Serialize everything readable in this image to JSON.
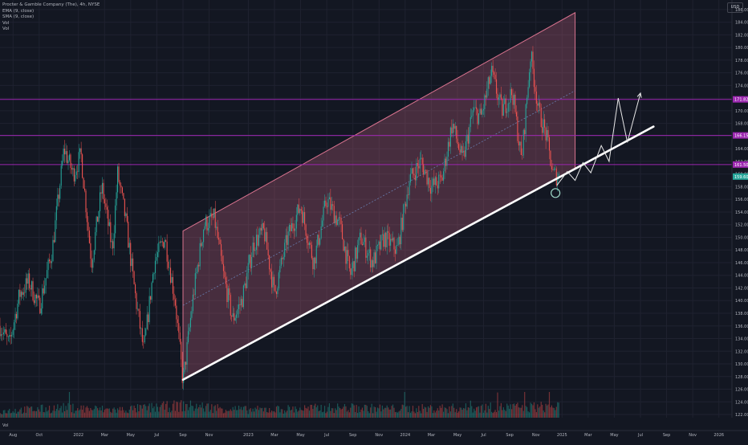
{
  "legend": {
    "symbol": "Procter & Gamble Company (The), 4h, NYSE",
    "ema": "EMA (9, close)",
    "sma": "SMA (9, close)",
    "vol1": "Vol",
    "vol2": "Vol"
  },
  "currency": "USD",
  "volume_label": "Vol",
  "colors": {
    "background": "#131722",
    "up": "#26a69a",
    "down": "#ef5350",
    "channel_fill": "#b85c7a",
    "channel_border": "#d9738f",
    "level": "#9c27b0",
    "trendline": "#ffffff",
    "price_badge": "#26a69a"
  },
  "chart_data": {
    "type": "candlestick",
    "title": "Procter & Gamble Company (The), 4h, NYSE",
    "currency": "USD",
    "ylim": [
      121.5,
      187.5
    ],
    "y_ticks": [
      122,
      124,
      126,
      128,
      130,
      132,
      134,
      136,
      138,
      140,
      142,
      144,
      146,
      148,
      150,
      152,
      154,
      156,
      158,
      160,
      162,
      164,
      166,
      168,
      170,
      172,
      174,
      176,
      178,
      180,
      182,
      184,
      186
    ],
    "x_ticks": [
      "Aug",
      "Oct",
      "2022",
      "Mar",
      "May",
      "Jul",
      "Sep",
      "Nov",
      "2023",
      "Mar",
      "May",
      "Jul",
      "Sep",
      "Nov",
      "2024",
      "Mar",
      "May",
      "Jul",
      "Sep",
      "Nov",
      "2025",
      "Mar",
      "May",
      "Jul",
      "Sep",
      "Nov",
      "2026"
    ],
    "x_tick_months": [
      0,
      2,
      5,
      7,
      9,
      11,
      13,
      15,
      18,
      20,
      22,
      24,
      26,
      28,
      30,
      32,
      34,
      36,
      38,
      40,
      42,
      44,
      46,
      48,
      50,
      52,
      54
    ],
    "x_range_months": [
      -1.0,
      55.0
    ],
    "price_path": [
      {
        "t": -1.0,
        "p": 136
      },
      {
        "t": -0.3,
        "p": 133
      },
      {
        "t": 0.5,
        "p": 141
      },
      {
        "t": 1.2,
        "p": 143
      },
      {
        "t": 2.0,
        "p": 139
      },
      {
        "t": 3.0,
        "p": 148
      },
      {
        "t": 3.9,
        "p": 164
      },
      {
        "t": 4.6,
        "p": 160
      },
      {
        "t": 5.2,
        "p": 163
      },
      {
        "t": 6.0,
        "p": 146
      },
      {
        "t": 6.8,
        "p": 158
      },
      {
        "t": 7.6,
        "p": 148
      },
      {
        "t": 8.0,
        "p": 160
      },
      {
        "t": 8.6,
        "p": 153
      },
      {
        "t": 9.4,
        "p": 140
      },
      {
        "t": 10.0,
        "p": 132
      },
      {
        "t": 10.8,
        "p": 146
      },
      {
        "t": 11.6,
        "p": 150
      },
      {
        "t": 12.4,
        "p": 140
      },
      {
        "t": 13.0,
        "p": 127
      },
      {
        "t": 13.8,
        "p": 141
      },
      {
        "t": 14.6,
        "p": 152
      },
      {
        "t": 15.4,
        "p": 153
      },
      {
        "t": 16.1,
        "p": 144
      },
      {
        "t": 16.8,
        "p": 137
      },
      {
        "t": 17.5,
        "p": 140
      },
      {
        "t": 18.4,
        "p": 149
      },
      {
        "t": 19.2,
        "p": 151
      },
      {
        "t": 20.0,
        "p": 141
      },
      {
        "t": 21.0,
        "p": 150
      },
      {
        "t": 22.0,
        "p": 155
      },
      {
        "t": 23.0,
        "p": 146
      },
      {
        "t": 24.0,
        "p": 156
      },
      {
        "t": 25.0,
        "p": 152
      },
      {
        "t": 25.8,
        "p": 144
      },
      {
        "t": 26.6,
        "p": 150
      },
      {
        "t": 27.5,
        "p": 146
      },
      {
        "t": 28.4,
        "p": 150
      },
      {
        "t": 29.4,
        "p": 148
      },
      {
        "t": 30.3,
        "p": 159
      },
      {
        "t": 31.2,
        "p": 162
      },
      {
        "t": 32.0,
        "p": 158
      },
      {
        "t": 32.8,
        "p": 159
      },
      {
        "t": 33.6,
        "p": 168
      },
      {
        "t": 34.4,
        "p": 162
      },
      {
        "t": 35.2,
        "p": 170
      },
      {
        "t": 35.8,
        "p": 169
      },
      {
        "t": 36.6,
        "p": 176
      },
      {
        "t": 37.4,
        "p": 170
      },
      {
        "t": 38.2,
        "p": 173
      },
      {
        "t": 38.9,
        "p": 162
      },
      {
        "t": 39.6,
        "p": 179
      },
      {
        "t": 40.2,
        "p": 170
      },
      {
        "t": 40.8,
        "p": 166
      },
      {
        "t": 41.3,
        "p": 160
      },
      {
        "t": 41.8,
        "p": 159.6
      }
    ],
    "volume_path": [
      {
        "t": -1.0,
        "v": 0.3
      },
      {
        "t": 4.0,
        "v": 0.45
      },
      {
        "t": 8.0,
        "v": 0.35
      },
      {
        "t": 13.0,
        "v": 0.55
      },
      {
        "t": 18.0,
        "v": 0.35
      },
      {
        "t": 25.0,
        "v": 0.45
      },
      {
        "t": 30.0,
        "v": 0.4
      },
      {
        "t": 36.0,
        "v": 0.45
      },
      {
        "t": 41.8,
        "v": 0.5
      }
    ],
    "channel": {
      "lower": {
        "t1": 13.0,
        "p1": 127.5,
        "t2": 49.0,
        "p2": 167.5
      },
      "upper": {
        "t1": 13.0,
        "p1": 151.0,
        "t2": 43.0,
        "p2": 185.5
      },
      "right_edge_t": 43.0
    },
    "levels": [
      {
        "price": 171.8,
        "label": "171.82"
      },
      {
        "price": 166.1,
        "label": "166.15"
      },
      {
        "price": 161.5,
        "label": "161.50"
      }
    ],
    "last_price": {
      "price": 159.6,
      "label": "159.60"
    },
    "projection": [
      {
        "t": 41.6,
        "p": 158.2
      },
      {
        "t": 42.4,
        "p": 160.4
      },
      {
        "t": 43.0,
        "p": 159.0
      },
      {
        "t": 43.6,
        "p": 161.8
      },
      {
        "t": 44.2,
        "p": 160.2
      },
      {
        "t": 45.0,
        "p": 164.5
      },
      {
        "t": 45.6,
        "p": 162.0
      },
      {
        "t": 46.3,
        "p": 172.0
      },
      {
        "t": 47.0,
        "p": 165.0
      },
      {
        "t": 48.0,
        "p": 172.8
      }
    ],
    "marker": {
      "t": 41.5,
      "p": 157.0
    }
  }
}
